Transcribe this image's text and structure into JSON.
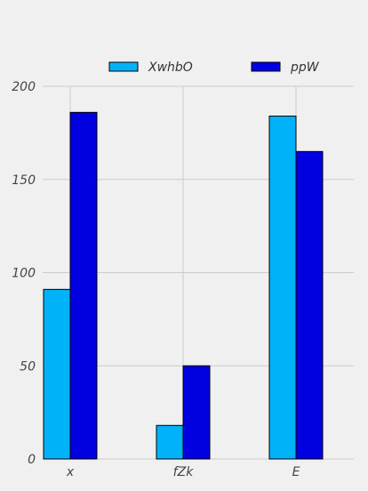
{
  "chart_data": {
    "type": "bar",
    "categories": [
      "x",
      "fZk",
      "E"
    ],
    "series": [
      {
        "name": "XwhbO",
        "values": [
          91,
          18,
          184
        ],
        "color": "#00b2f7"
      },
      {
        "name": "ppW",
        "values": [
          186,
          50,
          165
        ],
        "color": "#0000e0"
      }
    ],
    "title": "",
    "xlabel": "",
    "ylabel": "",
    "ylim": [
      0,
      200
    ],
    "yticks": [
      0,
      50,
      100,
      150,
      200
    ],
    "grid": true,
    "legend_position": "top-center",
    "background_color": "#f0f0f0",
    "grid_color": "#cbcbcb"
  }
}
